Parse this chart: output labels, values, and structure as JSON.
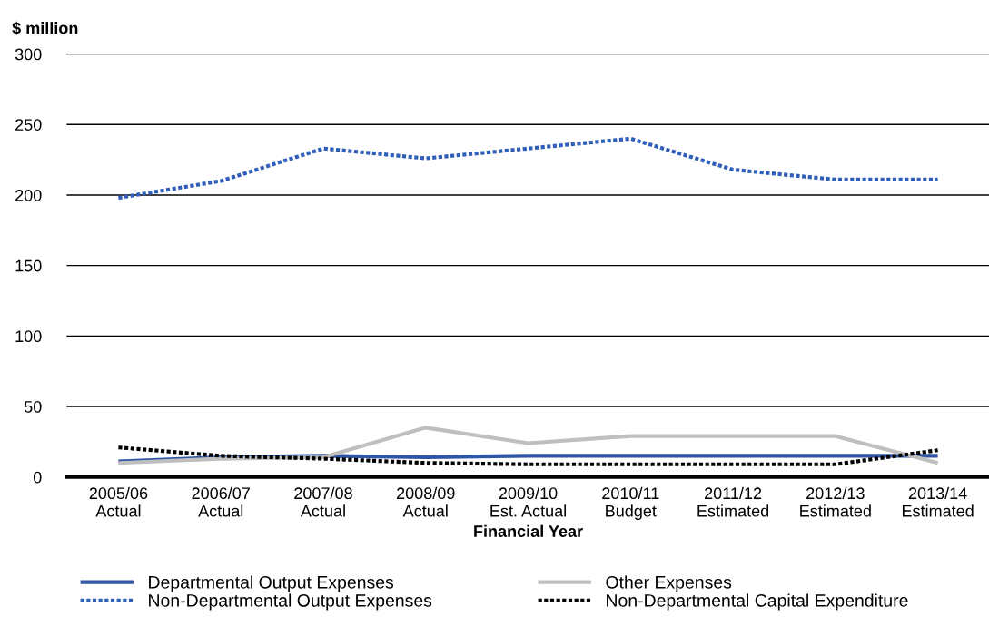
{
  "chart_data": {
    "type": "line",
    "ylabel": "$ million",
    "xlabel": "Financial Year",
    "categories": [
      "2005/06\nActual",
      "2006/07\nActual",
      "2007/08\nActual",
      "2008/09\nActual",
      "2009/10\nEst. Actual",
      "2010/11\nBudget",
      "2011/12\nEstimated",
      "2012/13\nEstimated",
      "2013/14\nEstimated"
    ],
    "series": [
      {
        "name": "Departmental Output Expenses",
        "color": "#2f55a4",
        "line_style": "solid",
        "values": [
          11,
          14,
          15,
          14,
          15,
          15,
          15,
          15,
          15
        ]
      },
      {
        "name": "Non-Departmental Output Expenses",
        "color": "#2f5fb8",
        "line_style": "dotted",
        "values": [
          198,
          210,
          233,
          226,
          233,
          240,
          218,
          211,
          211
        ]
      },
      {
        "name": "Other Expenses",
        "color": "#bfbfbf",
        "line_style": "solid",
        "values": [
          10,
          13,
          14,
          35,
          24,
          29,
          29,
          29,
          10
        ]
      },
      {
        "name": "Non-Departmental Capital Expenditure",
        "color": "#000000",
        "line_style": "dotted",
        "values": [
          21,
          15,
          13,
          10,
          9,
          9,
          9,
          9,
          19
        ]
      }
    ],
    "ylim": [
      0,
      300
    ],
    "yticks": [
      0,
      50,
      100,
      150,
      200,
      250,
      300
    ],
    "grid": "y",
    "legend": "bottom"
  }
}
